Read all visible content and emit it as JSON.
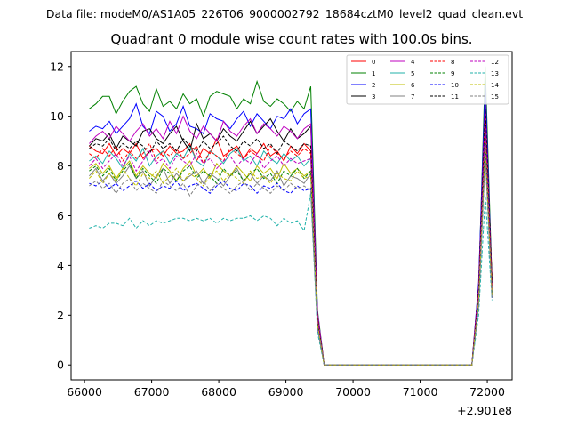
{
  "suptitle": "Data file: modeM0/AS1A05_226T06_9000002792_18684cztM0_level2_quad_clean.evt",
  "chart_data": {
    "type": "line",
    "title": "Quadrant 0 module wise count rates with 100.0s bins.",
    "xlabel": "",
    "ylabel": "",
    "x_offset_label": "+2.901e8",
    "xlim": [
      65800,
      72370
    ],
    "ylim": [
      -0.6,
      12.6
    ],
    "x_ticks": [
      66000,
      67000,
      68000,
      69000,
      70000,
      71000,
      72000
    ],
    "x_tick_labels": [
      "66000",
      "67000",
      "68000",
      "69000",
      "70000",
      "71000",
      "72000"
    ],
    "y_ticks": [
      0,
      2,
      4,
      6,
      8,
      10,
      12
    ],
    "y_tick_labels": [
      "0",
      "2",
      "4",
      "6",
      "8",
      "10",
      "12"
    ],
    "x": [
      66070,
      66170,
      66270,
      66370,
      66470,
      66570,
      66670,
      66770,
      66870,
      66970,
      67070,
      67170,
      67270,
      67370,
      67470,
      67570,
      67670,
      67770,
      67870,
      67970,
      68070,
      68170,
      68270,
      68370,
      68470,
      68570,
      68670,
      68770,
      68870,
      68970,
      69070,
      69170,
      69270,
      69370,
      69470,
      69570,
      69670,
      69770,
      69870,
      69970,
      70070,
      70170,
      70270,
      70370,
      70470,
      70570,
      70670,
      70770,
      70870,
      70970,
      71070,
      71170,
      71270,
      71370,
      71470,
      71570,
      71670,
      71770,
      71870,
      71970,
      72070
    ],
    "series": [
      {
        "name": "0",
        "color": "#ff0000",
        "dash": "solid",
        "values": [
          8.8,
          8.6,
          8.5,
          8.9,
          8.4,
          8.7,
          8.5,
          8.9,
          8.3,
          8.6,
          8.7,
          8.4,
          8.8,
          8.5,
          8.6,
          8.9,
          8.2,
          8.7,
          8.5,
          9.1,
          8.4,
          8.6,
          8.8,
          8.3,
          8.7,
          8.5,
          8.9,
          8.4,
          8.6,
          8.2,
          8.8,
          8.5,
          8.9,
          8.6,
          1.9,
          0,
          0,
          0,
          0,
          0,
          0,
          0,
          0,
          0,
          0,
          0,
          0,
          0,
          0,
          0,
          0,
          0,
          0,
          0,
          0,
          0,
          0,
          0,
          3.2,
          10.4,
          3.5
        ]
      },
      {
        "name": "1",
        "color": "#008000",
        "dash": "solid",
        "values": [
          10.3,
          10.5,
          10.8,
          10.8,
          10.1,
          10.6,
          11.0,
          11.2,
          10.5,
          10.2,
          11.1,
          10.4,
          10.6,
          10.3,
          10.9,
          10.5,
          10.7,
          10.0,
          10.8,
          11.0,
          10.9,
          10.8,
          10.3,
          10.7,
          10.5,
          11.4,
          10.6,
          10.4,
          10.7,
          10.5,
          10.2,
          10.6,
          10.3,
          11.2,
          2.2,
          0,
          0,
          0,
          0,
          0,
          0,
          0,
          0,
          0,
          0,
          0,
          0,
          0,
          0,
          0,
          0,
          0,
          0,
          0,
          0,
          0,
          0,
          0,
          3.0,
          12.0,
          3.3
        ]
      },
      {
        "name": "2",
        "color": "#0000ff",
        "dash": "solid",
        "values": [
          9.4,
          9.6,
          9.5,
          9.8,
          9.3,
          9.6,
          9.9,
          10.5,
          9.6,
          9.3,
          10.2,
          10.0,
          9.4,
          9.7,
          10.4,
          9.6,
          9.5,
          9.3,
          10.1,
          9.9,
          9.8,
          9.5,
          9.9,
          10.2,
          9.6,
          10.1,
          9.8,
          9.5,
          10.0,
          9.9,
          10.3,
          9.7,
          10.1,
          10.3,
          2.1,
          0,
          0,
          0,
          0,
          0,
          0,
          0,
          0,
          0,
          0,
          0,
          0,
          0,
          0,
          0,
          0,
          0,
          0,
          0,
          0,
          0,
          0,
          0,
          3.3,
          11.3,
          3.2
        ]
      },
      {
        "name": "3",
        "color": "#000000",
        "dash": "solid",
        "values": [
          8.8,
          9.1,
          9.0,
          9.3,
          8.7,
          9.2,
          9.0,
          8.8,
          9.4,
          9.5,
          9.1,
          8.9,
          9.3,
          9.6,
          9.0,
          8.6,
          9.7,
          9.1,
          9.3,
          9.0,
          9.5,
          9.2,
          9.0,
          9.4,
          9.8,
          9.3,
          9.6,
          9.9,
          9.4,
          9.0,
          9.5,
          9.1,
          9.3,
          9.6,
          2.0,
          0,
          0,
          0,
          0,
          0,
          0,
          0,
          0,
          0,
          0,
          0,
          0,
          0,
          0,
          0,
          0,
          0,
          0,
          0,
          0,
          0,
          0,
          0,
          2.9,
          10.0,
          3.4
        ]
      },
      {
        "name": "4",
        "color": "#bf00bf",
        "dash": "solid",
        "values": [
          8.9,
          9.2,
          9.4,
          9.1,
          9.6,
          9.3,
          9.0,
          9.4,
          9.7,
          9.2,
          9.5,
          9.1,
          9.8,
          9.3,
          10.0,
          9.4,
          9.1,
          9.6,
          9.3,
          9.0,
          9.8,
          9.4,
          9.2,
          9.6,
          9.9,
          9.3,
          9.7,
          9.5,
          9.2,
          9.6,
          9.4,
          9.1,
          9.5,
          9.7,
          2.1,
          0,
          0,
          0,
          0,
          0,
          0,
          0,
          0,
          0,
          0,
          0,
          0,
          0,
          0,
          0,
          0,
          0,
          0,
          0,
          0,
          0,
          0,
          0,
          3.1,
          10.5,
          3.2
        ]
      },
      {
        "name": "5",
        "color": "#20b2aa",
        "dash": "solid",
        "values": [
          8.2,
          8.4,
          8.1,
          8.6,
          8.3,
          7.9,
          8.5,
          8.2,
          8.7,
          8.0,
          8.4,
          8.6,
          8.1,
          8.5,
          8.3,
          8.8,
          8.2,
          8.0,
          8.6,
          8.4,
          8.1,
          8.5,
          8.7,
          8.2,
          8.4,
          8.0,
          8.6,
          8.3,
          8.1,
          8.5,
          8.2,
          8.4,
          8.0,
          8.3,
          1.8,
          0,
          0,
          0,
          0,
          0,
          0,
          0,
          0,
          0,
          0,
          0,
          0,
          0,
          0,
          0,
          0,
          0,
          0,
          0,
          0,
          0,
          0,
          0,
          2.7,
          9.5,
          3.0
        ]
      },
      {
        "name": "6",
        "color": "#bfbf00",
        "dash": "solid",
        "values": [
          7.9,
          8.1,
          7.7,
          8.0,
          7.5,
          7.9,
          8.2,
          7.6,
          8.0,
          7.7,
          7.5,
          8.1,
          7.8,
          7.4,
          7.9,
          8.2,
          7.6,
          7.9,
          7.5,
          8.1,
          7.8,
          7.6,
          8.0,
          7.7,
          7.4,
          8.0,
          7.7,
          7.9,
          7.5,
          8.1,
          7.7,
          7.9,
          7.6,
          7.8,
          1.7,
          0,
          0,
          0,
          0,
          0,
          0,
          0,
          0,
          0,
          0,
          0,
          0,
          0,
          0,
          0,
          0,
          0,
          0,
          0,
          0,
          0,
          0,
          0,
          2.6,
          9.0,
          2.9
        ]
      },
      {
        "name": "7",
        "color": "#808080",
        "dash": "solid",
        "values": [
          7.6,
          7.9,
          7.4,
          7.7,
          7.3,
          7.6,
          8.0,
          7.5,
          7.8,
          7.2,
          7.6,
          7.9,
          7.3,
          7.7,
          7.4,
          7.6,
          7.8,
          7.3,
          7.7,
          7.5,
          7.2,
          7.6,
          7.9,
          7.4,
          7.7,
          7.3,
          7.6,
          7.4,
          7.8,
          7.2,
          7.6,
          7.5,
          7.3,
          7.7,
          1.6,
          0,
          0,
          0,
          0,
          0,
          0,
          0,
          0,
          0,
          0,
          0,
          0,
          0,
          0,
          0,
          0,
          0,
          0,
          0,
          0,
          0,
          0,
          0,
          2.5,
          8.8,
          2.8
        ]
      },
      {
        "name": "8",
        "color": "#ff0000",
        "dash": "dashed",
        "values": [
          8.5,
          8.3,
          8.7,
          8.4,
          8.8,
          8.2,
          8.6,
          8.3,
          8.5,
          8.9,
          8.2,
          8.6,
          8.4,
          8.7,
          8.3,
          8.5,
          8.8,
          8.1,
          8.6,
          8.4,
          8.2,
          8.7,
          8.5,
          8.3,
          8.6,
          8.4,
          8.2,
          8.8,
          8.5,
          8.3,
          8.6,
          8.4,
          8.7,
          8.5,
          1.9,
          0,
          0,
          0,
          0,
          0,
          0,
          0,
          0,
          0,
          0,
          0,
          0,
          0,
          0,
          0,
          0,
          0,
          0,
          0,
          0,
          0,
          0,
          0,
          3.0,
          10.2,
          3.1
        ]
      },
      {
        "name": "9",
        "color": "#008000",
        "dash": "dashed",
        "values": [
          7.8,
          8.0,
          7.6,
          7.9,
          7.4,
          7.8,
          8.1,
          7.5,
          7.9,
          7.6,
          7.3,
          7.9,
          7.7,
          7.4,
          7.8,
          8.0,
          7.5,
          7.8,
          7.6,
          7.3,
          7.9,
          7.6,
          7.8,
          7.4,
          7.7,
          7.9,
          7.5,
          7.7,
          7.3,
          7.8,
          7.6,
          7.9,
          7.5,
          7.8,
          1.7,
          0,
          0,
          0,
          0,
          0,
          0,
          0,
          0,
          0,
          0,
          0,
          0,
          0,
          0,
          0,
          0,
          0,
          0,
          0,
          0,
          0,
          0,
          0,
          2.6,
          9.2,
          2.9
        ]
      },
      {
        "name": "10",
        "color": "#0000ff",
        "dash": "dashed",
        "values": [
          7.3,
          7.2,
          7.4,
          7.1,
          7.3,
          7.0,
          7.2,
          7.4,
          7.1,
          7.3,
          7.0,
          7.2,
          7.1,
          7.4,
          7.0,
          7.2,
          7.3,
          7.1,
          6.9,
          7.2,
          7.4,
          7.1,
          7.0,
          7.3,
          7.2,
          6.9,
          7.2,
          7.1,
          7.3,
          7.0,
          6.9,
          7.2,
          7.0,
          7.1,
          1.5,
          0,
          0,
          0,
          0,
          0,
          0,
          0,
          0,
          0,
          0,
          0,
          0,
          0,
          0,
          0,
          0,
          0,
          0,
          0,
          0,
          0,
          0,
          0,
          2.4,
          8.5,
          2.7
        ]
      },
      {
        "name": "11",
        "color": "#000000",
        "dash": "dashed",
        "values": [
          8.7,
          8.9,
          8.8,
          9.1,
          8.6,
          8.9,
          8.7,
          9.0,
          8.8,
          8.5,
          9.0,
          8.7,
          8.9,
          8.6,
          9.1,
          8.8,
          8.6,
          9.0,
          8.7,
          8.9,
          9.2,
          8.8,
          8.6,
          9.0,
          8.8,
          9.1,
          8.7,
          8.9,
          8.5,
          9.0,
          8.8,
          8.6,
          8.9,
          8.8,
          1.9,
          0,
          0,
          0,
          0,
          0,
          0,
          0,
          0,
          0,
          0,
          0,
          0,
          0,
          0,
          0,
          0,
          0,
          0,
          0,
          0,
          0,
          0,
          0,
          3.0,
          10.3,
          3.3
        ]
      },
      {
        "name": "12",
        "color": "#bf00bf",
        "dash": "dashed",
        "values": [
          8.0,
          8.3,
          7.9,
          8.2,
          8.5,
          8.0,
          8.4,
          7.8,
          8.2,
          8.6,
          8.1,
          8.3,
          7.9,
          8.4,
          8.2,
          8.0,
          8.5,
          8.1,
          8.3,
          7.9,
          8.2,
          8.4,
          8.0,
          8.3,
          8.1,
          8.5,
          7.9,
          8.2,
          8.4,
          8.0,
          8.3,
          8.1,
          8.2,
          8.3,
          1.8,
          0,
          0,
          0,
          0,
          0,
          0,
          0,
          0,
          0,
          0,
          0,
          0,
          0,
          0,
          0,
          0,
          0,
          0,
          0,
          0,
          0,
          0,
          0,
          2.8,
          9.6,
          3.0
        ]
      },
      {
        "name": "13",
        "color": "#20b2aa",
        "dash": "dashed",
        "values": [
          5.5,
          5.6,
          5.5,
          5.7,
          5.7,
          5.6,
          5.9,
          5.5,
          5.8,
          5.6,
          5.8,
          5.7,
          5.8,
          5.9,
          5.9,
          5.8,
          5.9,
          5.8,
          5.9,
          5.7,
          5.9,
          5.8,
          5.9,
          5.9,
          6.0,
          5.8,
          6.0,
          5.9,
          5.6,
          5.9,
          5.7,
          5.8,
          5.4,
          6.9,
          1.3,
          0,
          0,
          0,
          0,
          0,
          0,
          0,
          0,
          0,
          0,
          0,
          0,
          0,
          0,
          0,
          0,
          0,
          0,
          0,
          0,
          0,
          0,
          0,
          2.0,
          6.8,
          2.6
        ]
      },
      {
        "name": "14",
        "color": "#bfbf00",
        "dash": "dashed",
        "values": [
          7.5,
          7.8,
          7.3,
          7.7,
          7.4,
          7.9,
          7.5,
          7.2,
          7.7,
          7.5,
          7.8,
          7.3,
          7.6,
          7.9,
          7.4,
          7.7,
          7.5,
          7.2,
          7.6,
          7.8,
          7.4,
          7.7,
          7.5,
          7.3,
          7.8,
          7.5,
          7.6,
          7.3,
          7.7,
          7.5,
          7.4,
          7.8,
          7.5,
          7.6,
          1.6,
          0,
          0,
          0,
          0,
          0,
          0,
          0,
          0,
          0,
          0,
          0,
          0,
          0,
          0,
          0,
          0,
          0,
          0,
          0,
          0,
          0,
          0,
          0,
          2.5,
          8.7,
          2.8
        ]
      },
      {
        "name": "15",
        "color": "#808080",
        "dash": "dashed",
        "values": [
          7.2,
          7.4,
          7.1,
          7.3,
          6.9,
          7.3,
          7.5,
          7.0,
          7.3,
          7.1,
          6.9,
          7.4,
          7.2,
          7.0,
          7.3,
          6.8,
          7.2,
          7.4,
          7.0,
          7.3,
          7.1,
          6.9,
          7.2,
          7.4,
          7.0,
          7.3,
          7.1,
          6.9,
          7.2,
          7.0,
          7.3,
          7.1,
          7.2,
          7.0,
          1.5,
          0,
          0,
          0,
          0,
          0,
          0,
          0,
          0,
          0,
          0,
          0,
          0,
          0,
          0,
          0,
          0,
          0,
          0,
          0,
          0,
          0,
          0,
          0,
          2.3,
          8.4,
          2.7
        ]
      }
    ],
    "legend": {
      "location": "top-right",
      "columns": 4
    }
  }
}
